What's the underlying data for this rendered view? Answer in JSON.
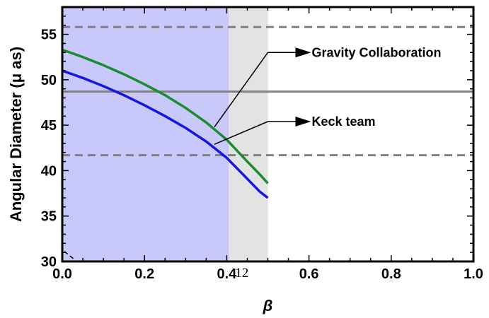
{
  "chart_data": {
    "type": "line",
    "xlabel": "β",
    "ylabel": "Angular Diameter (μ as)",
    "xlim": [
      0.0,
      1.0
    ],
    "ylim": [
      30,
      58
    ],
    "x_ticks": [
      "0.0",
      "0.2",
      "0.4",
      "0.6",
      "0.8",
      "1.0"
    ],
    "y_ticks": [
      "30",
      "35",
      "40",
      "45",
      "50",
      "55"
    ],
    "stray_label": "12",
    "grid": false,
    "regions": [
      {
        "x_range": [
          0.0,
          0.405
        ],
        "color": "#c8c8fa"
      },
      {
        "x_range": [
          0.405,
          0.5
        ],
        "color": "#e3e3e3"
      }
    ],
    "series": [
      {
        "color": "#1a8c2e",
        "x": [
          0.0,
          0.05,
          0.1,
          0.15,
          0.2,
          0.25,
          0.3,
          0.35,
          0.4,
          0.45,
          0.48,
          0.5
        ],
        "y": [
          53.3,
          52.5,
          51.6,
          50.6,
          49.5,
          48.3,
          46.9,
          45.3,
          43.4,
          41.0,
          39.6,
          38.6
        ]
      },
      {
        "color": "#1515e6",
        "x": [
          0.0,
          0.05,
          0.1,
          0.15,
          0.2,
          0.25,
          0.3,
          0.35,
          0.4,
          0.45,
          0.48,
          0.5
        ],
        "y": [
          51.0,
          50.2,
          49.3,
          48.3,
          47.2,
          46.0,
          44.7,
          43.2,
          41.4,
          39.1,
          37.7,
          37.0
        ]
      }
    ],
    "hlines": [
      {
        "y": 55.8,
        "style": "dashed",
        "color": "#808080"
      },
      {
        "y": 48.7,
        "style": "solid",
        "color": "#808080"
      },
      {
        "y": 41.7,
        "style": "dashed",
        "color": "#808080"
      }
    ],
    "annotations": [
      {
        "text": "Gravity Collaboration",
        "line_from": [
          0.37,
          44.8
        ],
        "line_to": [
          0.5,
          53.0
        ],
        "arrow_to": [
          0.605,
          53.0
        ]
      },
      {
        "text": "Keck team",
        "line_from": [
          0.37,
          42.9
        ],
        "line_to": [
          0.5,
          45.4
        ],
        "arrow_to": [
          0.605,
          45.4
        ]
      }
    ]
  }
}
